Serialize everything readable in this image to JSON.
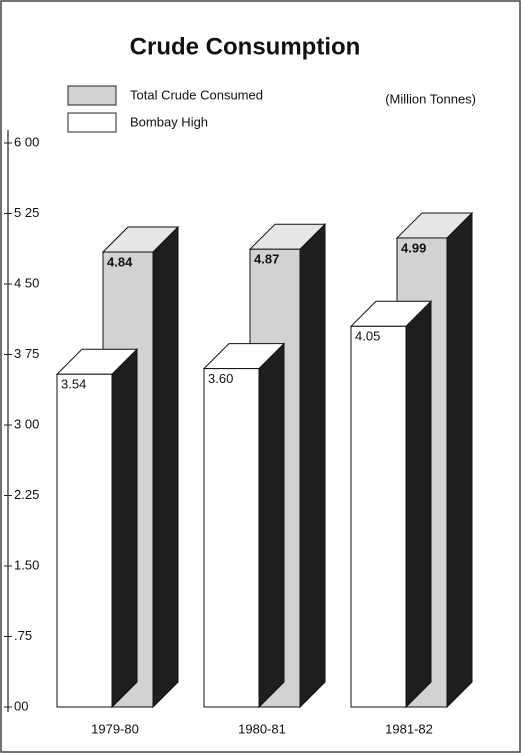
{
  "chart_data": {
    "type": "bar3d",
    "title": "Crude Consumption",
    "unit_note": "(Million Tonnes)",
    "categories": [
      "1979-80",
      "1980-81",
      "1981-82"
    ],
    "series": [
      {
        "name": "Total Crude Consumed",
        "color": "#d2d2d2",
        "values": [
          4.84,
          4.87,
          4.99
        ],
        "value_labels": [
          "4.84",
          "4.87",
          "4.99"
        ]
      },
      {
        "name": "Bombay High",
        "color": "#ffffff",
        "values": [
          3.54,
          3.6,
          4.05
        ],
        "value_labels": [
          "3.54",
          "3.60",
          "4.05"
        ]
      }
    ],
    "ylim": [
      0,
      6
    ],
    "yticks": [
      {
        "value": 0,
        "label": "00"
      },
      {
        "value": 0.75,
        "label": ".75"
      },
      {
        "value": 1.5,
        "label": "1.50"
      },
      {
        "value": 2.25,
        "label": "2.25"
      },
      {
        "value": 3,
        "label": "3 00"
      },
      {
        "value": 3.75,
        "label": "3 75"
      },
      {
        "value": 4.5,
        "label": "4 50"
      },
      {
        "value": 5.25,
        "label": "5 25"
      },
      {
        "value": 6,
        "label": "6 00"
      }
    ]
  }
}
